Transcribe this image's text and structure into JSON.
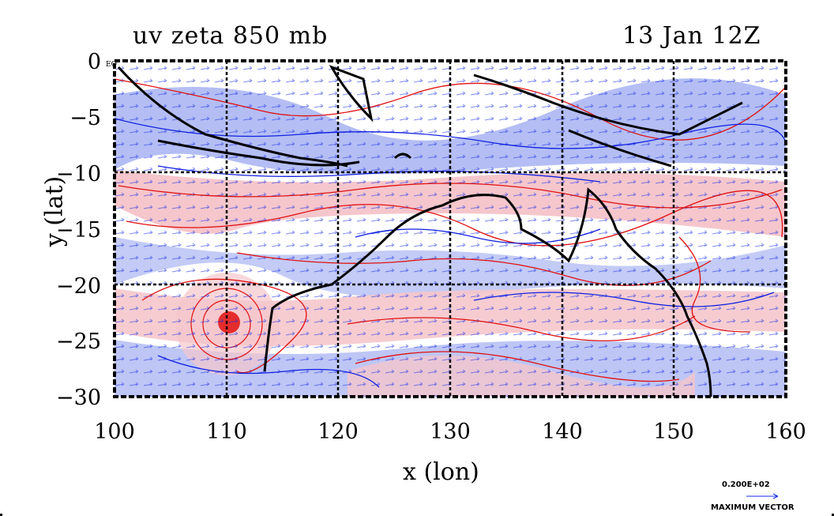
{
  "title_left": "uv zeta 850 mb",
  "title_right": "13 Jan 12Z",
  "xlabel": "x (lon)",
  "ylabel": "y (lat)",
  "eq_label": "EQ",
  "legend": {
    "value": "0.200E+02",
    "caption": "MAXIMUM VECTOR"
  },
  "axes": {
    "xlim": [
      100,
      160
    ],
    "ylim": [
      -30,
      0
    ],
    "xticks": [
      "100",
      "110",
      "120",
      "130",
      "140",
      "150",
      "160"
    ],
    "yticks": [
      "0",
      "−5",
      "−10",
      "−15",
      "−20",
      "−25",
      "−30"
    ],
    "grid_lon": [
      110,
      120,
      130,
      140,
      150
    ],
    "grid_lat": [
      -10,
      -20
    ]
  },
  "colors": {
    "positive_shade": "#f5c6cc",
    "negative_shade": "#9ba8f0",
    "positive_contour": "#e01010",
    "negative_contour": "#1020e0",
    "vectors": "#1a2ee8",
    "coast": "#000000"
  },
  "features": {
    "cyclone_center": {
      "lon": 110,
      "lat": -23.3
    }
  }
}
